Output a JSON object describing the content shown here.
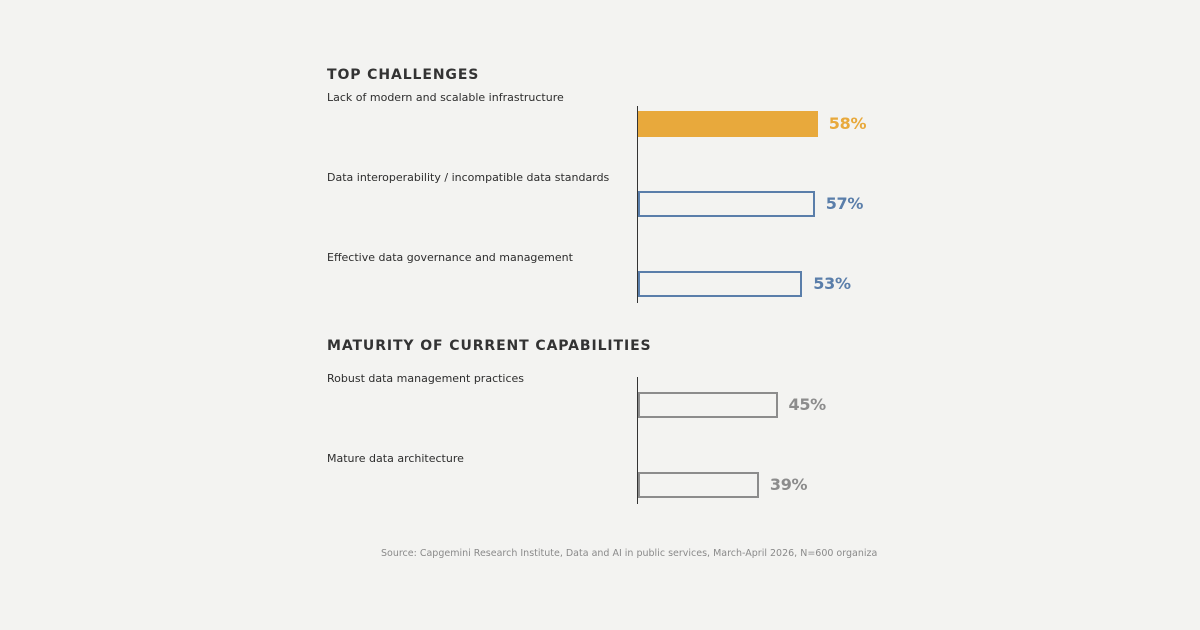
{
  "chart_data": [
    {
      "type": "bar",
      "orientation": "horizontal",
      "title": "TOP CHALLENGES",
      "categories": [
        "Lack of modern and scalable infrastructure",
        "Data interoperability / incompatible data standards",
        "Effective data governance and management"
      ],
      "values": [
        58,
        57,
        53
      ],
      "value_labels": [
        "58%",
        "57%",
        "53%"
      ],
      "bar_styles": [
        "filled",
        "outlined",
        "outlined"
      ],
      "colors": [
        "#e8a93c",
        "#5a7eaa",
        "#5a7eaa"
      ],
      "xlim": [
        0,
        100
      ],
      "grid": false
    },
    {
      "type": "bar",
      "orientation": "horizontal",
      "title": "MATURITY OF CURRENT CAPABILITIES",
      "categories": [
        "Robust data management practices",
        "Mature data architecture"
      ],
      "values": [
        45,
        39
      ],
      "value_labels": [
        "45%",
        "39%"
      ],
      "bar_styles": [
        "outlined",
        "outlined"
      ],
      "colors": [
        "#8c8c8c",
        "#8c8c8c"
      ],
      "xlim": [
        0,
        100
      ],
      "grid": false
    }
  ],
  "source": "Source: Capgemini Research Institute, Data and AI in public services, March-April 2026, N=600 organiza"
}
